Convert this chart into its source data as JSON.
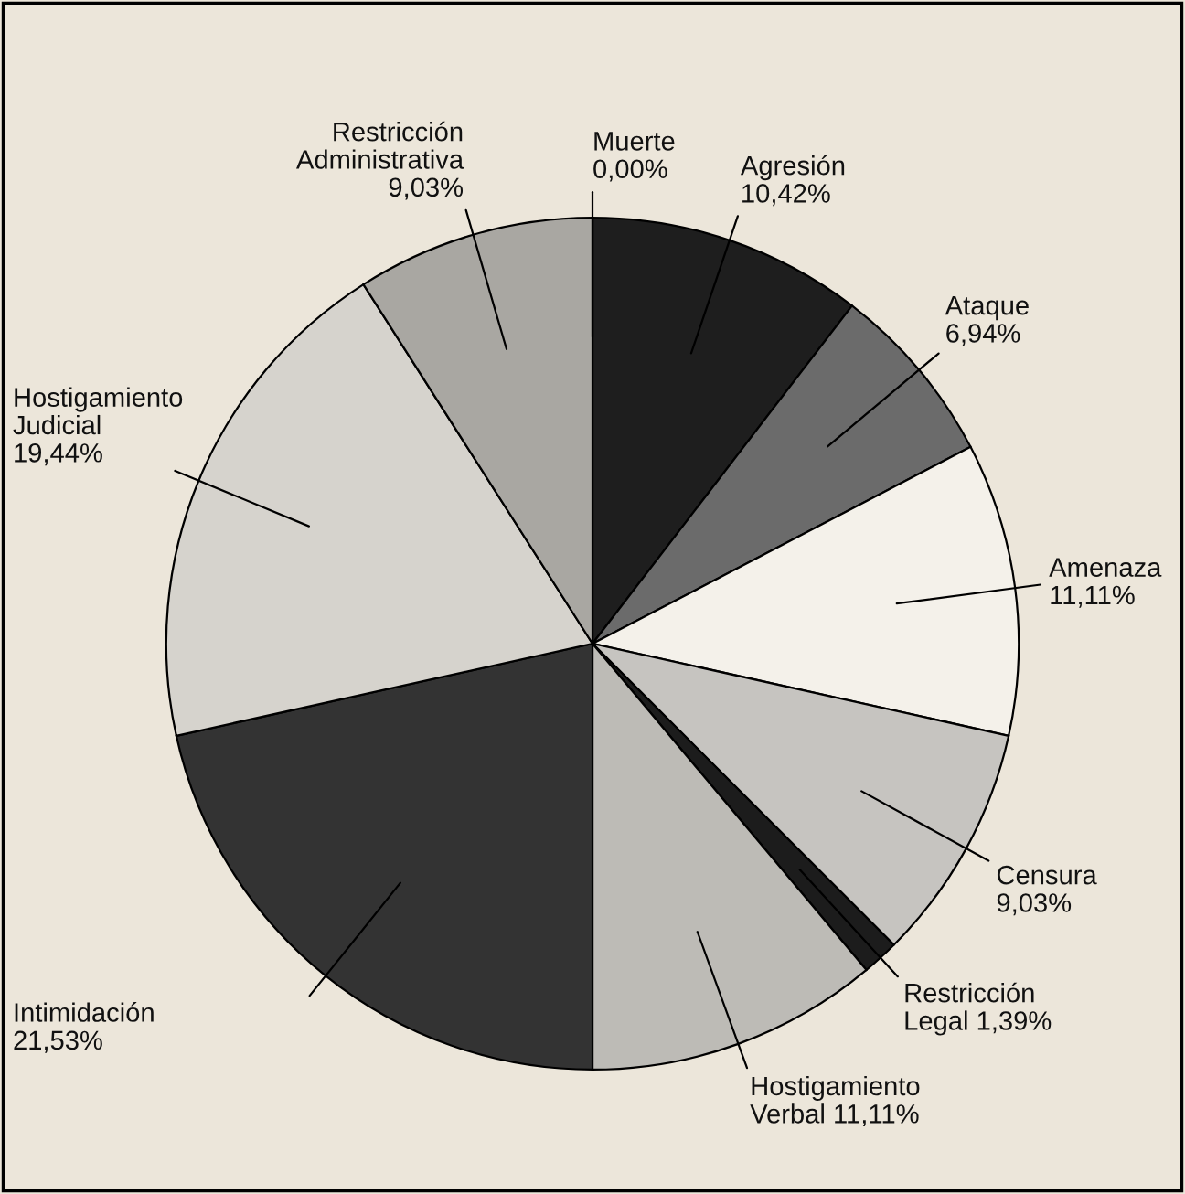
{
  "chart_data": {
    "type": "pie",
    "categories": [
      "Muerte",
      "Agresión",
      "Ataque",
      "Amenaza",
      "Censura",
      "Restricción\nLegal",
      "Hostigamiento\nVerbal",
      "Intimidación",
      "Hostigamiento\nJudicial",
      "Restricción\nAdministrativa"
    ],
    "values": [
      0.0,
      10.42,
      6.94,
      11.11,
      9.03,
      1.39,
      11.11,
      21.53,
      19.44,
      9.03
    ],
    "value_labels": [
      "0,00%",
      "10,42%",
      "6,94%",
      "11,11%",
      "9,03%",
      "1,39%",
      "11,11%",
      "21,53%",
      "19,44%",
      "9,03%"
    ],
    "colors": [
      "#111111",
      "#1e1e1e",
      "#6b6b6b",
      "#f4f1ea",
      "#c6c4c0",
      "#1c1c1c",
      "#bdbbb6",
      "#333333",
      "#d6d3cd",
      "#a9a7a2"
    ],
    "legend": false
  }
}
